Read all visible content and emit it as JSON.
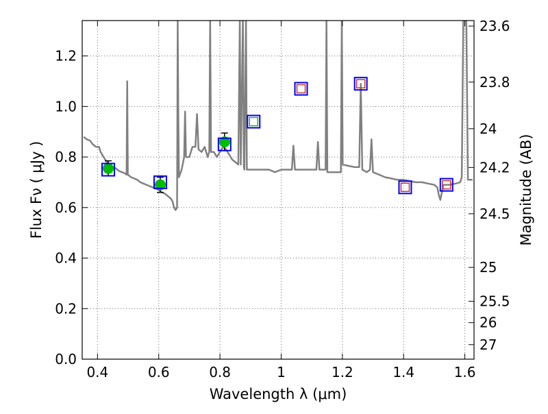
{
  "chart_data": {
    "type": "scatter",
    "xlabel": "Wavelength  λ (μm)",
    "ylabel": "Flux  Fν  ( μJy )",
    "y2label": "Magnitude (AB)",
    "xlim": [
      0.35,
      1.63
    ],
    "ylim": [
      0.0,
      1.34
    ],
    "x_ticks": [
      0.4,
      0.6,
      0.8,
      1.0,
      1.2,
      1.4,
      1.6
    ],
    "x_tick_labels": [
      "0.4",
      "0.6",
      "0.8",
      "1",
      "1.2",
      "1.4",
      "1.6"
    ],
    "y_ticks": [
      0.0,
      0.2,
      0.4,
      0.6,
      0.8,
      1.0,
      1.2
    ],
    "y_tick_labels": [
      "0.0",
      "0.2",
      "0.4",
      "0.6",
      "0.8",
      "1.0",
      "1.2"
    ],
    "mag_ticks": [
      23.6,
      23.8,
      24,
      24.2,
      24.5,
      25,
      25.5,
      26,
      27
    ],
    "mag_tick_labels": [
      "23.6",
      "23.8",
      "24",
      "24.2",
      "24.5",
      "25",
      "25.5",
      "26",
      "27"
    ],
    "grid": true,
    "series": [
      {
        "kind": "spectrum",
        "color": "#808080",
        "points": [
          [
            0.355,
            0.88
          ],
          [
            0.365,
            0.87
          ],
          [
            0.375,
            0.865
          ],
          [
            0.385,
            0.85
          ],
          [
            0.395,
            0.84
          ],
          [
            0.405,
            0.84
          ],
          [
            0.41,
            0.82
          ],
          [
            0.42,
            0.8
          ],
          [
            0.43,
            0.78
          ],
          [
            0.44,
            0.77
          ],
          [
            0.45,
            0.76
          ],
          [
            0.46,
            0.755
          ],
          [
            0.47,
            0.745
          ],
          [
            0.48,
            0.74
          ],
          [
            0.49,
            0.735
          ],
          [
            0.495,
            0.73
          ],
          [
            0.497,
            1.1
          ],
          [
            0.499,
            0.73
          ],
          [
            0.51,
            0.72
          ],
          [
            0.52,
            0.715
          ],
          [
            0.53,
            0.71
          ],
          [
            0.54,
            0.7
          ],
          [
            0.55,
            0.695
          ],
          [
            0.56,
            0.69
          ],
          [
            0.57,
            0.685
          ],
          [
            0.58,
            0.68
          ],
          [
            0.59,
            0.675
          ],
          [
            0.6,
            0.67
          ],
          [
            0.61,
            0.66
          ],
          [
            0.62,
            0.655
          ],
          [
            0.63,
            0.645
          ],
          [
            0.64,
            0.635
          ],
          [
            0.645,
            0.625
          ],
          [
            0.65,
            0.6
          ],
          [
            0.655,
            0.59
          ],
          [
            0.66,
            0.6
          ],
          [
            0.662,
            1.34
          ],
          [
            0.664,
            0.98
          ],
          [
            0.666,
            0.72
          ],
          [
            0.675,
            0.75
          ],
          [
            0.683,
            0.8
          ],
          [
            0.686,
            0.98
          ],
          [
            0.689,
            0.8
          ],
          [
            0.7,
            0.8
          ],
          [
            0.71,
            0.84
          ],
          [
            0.72,
            0.84
          ],
          [
            0.725,
            0.97
          ],
          [
            0.73,
            0.83
          ],
          [
            0.74,
            0.82
          ],
          [
            0.75,
            0.84
          ],
          [
            0.76,
            0.8
          ],
          [
            0.765,
            0.82
          ],
          [
            0.768,
            1.34
          ],
          [
            0.771,
            0.82
          ],
          [
            0.78,
            0.82
          ],
          [
            0.79,
            0.8
          ],
          [
            0.8,
            0.82
          ],
          [
            0.81,
            0.84
          ],
          [
            0.82,
            0.83
          ],
          [
            0.83,
            0.81
          ],
          [
            0.84,
            0.79
          ],
          [
            0.85,
            0.78
          ],
          [
            0.86,
            0.77
          ],
          [
            0.865,
            1.34
          ],
          [
            0.868,
            0.77
          ],
          [
            0.875,
            1.34
          ],
          [
            0.878,
            0.76
          ],
          [
            0.88,
            0.75
          ],
          [
            0.885,
            1.34
          ],
          [
            0.888,
            0.75
          ],
          [
            0.9,
            0.75
          ],
          [
            0.92,
            0.75
          ],
          [
            0.94,
            0.75
          ],
          [
            0.96,
            0.75
          ],
          [
            0.98,
            0.74
          ],
          [
            1.0,
            0.75
          ],
          [
            1.02,
            0.75
          ],
          [
            1.035,
            0.75
          ],
          [
            1.04,
            0.845
          ],
          [
            1.045,
            0.75
          ],
          [
            1.06,
            0.75
          ],
          [
            1.08,
            0.75
          ],
          [
            1.1,
            0.75
          ],
          [
            1.115,
            0.75
          ],
          [
            1.12,
            0.86
          ],
          [
            1.125,
            0.75
          ],
          [
            1.14,
            0.75
          ],
          [
            1.145,
            0.75
          ],
          [
            1.148,
            1.34
          ],
          [
            1.151,
            0.74
          ],
          [
            1.16,
            0.74
          ],
          [
            1.18,
            0.74
          ],
          [
            1.195,
            0.74
          ],
          [
            1.198,
            1.34
          ],
          [
            1.201,
            0.77
          ],
          [
            1.22,
            0.765
          ],
          [
            1.24,
            0.76
          ],
          [
            1.255,
            0.76
          ],
          [
            1.26,
            1.09
          ],
          [
            1.265,
            0.75
          ],
          [
            1.28,
            0.74
          ],
          [
            1.29,
            0.75
          ],
          [
            1.295,
            0.87
          ],
          [
            1.3,
            0.74
          ],
          [
            1.32,
            0.73
          ],
          [
            1.34,
            0.72
          ],
          [
            1.36,
            0.715
          ],
          [
            1.38,
            0.71
          ],
          [
            1.4,
            0.71
          ],
          [
            1.42,
            0.705
          ],
          [
            1.44,
            0.7
          ],
          [
            1.46,
            0.7
          ],
          [
            1.48,
            0.695
          ],
          [
            1.5,
            0.69
          ],
          [
            1.51,
            0.68
          ],
          [
            1.515,
            0.65
          ],
          [
            1.52,
            0.63
          ],
          [
            1.525,
            0.66
          ],
          [
            1.53,
            0.69
          ],
          [
            1.55,
            0.69
          ],
          [
            1.57,
            0.695
          ],
          [
            1.585,
            0.7
          ],
          [
            1.59,
            0.72
          ],
          [
            1.595,
            1.34
          ],
          [
            1.605,
            1.34
          ],
          [
            1.61,
            0.71
          ],
          [
            1.625,
            0.71
          ]
        ]
      },
      {
        "kind": "measured",
        "color": "#00bb00",
        "points": [
          [
            0.435,
            0.755,
            0.03
          ],
          [
            0.605,
            0.69,
            0.03
          ],
          [
            0.815,
            0.86,
            0.035
          ]
        ]
      },
      {
        "kind": "model-squares",
        "color": "#0000ee",
        "points": [
          [
            0.435,
            0.75
          ],
          [
            0.605,
            0.7
          ],
          [
            0.815,
            0.85
          ],
          [
            0.91,
            0.94
          ],
          [
            1.065,
            1.07
          ],
          [
            1.26,
            1.09
          ],
          [
            1.405,
            0.68
          ],
          [
            1.54,
            0.69
          ]
        ]
      },
      {
        "kind": "inner-squares-green",
        "color": "#33aa33",
        "points": [
          [
            0.91,
            0.94
          ]
        ]
      },
      {
        "kind": "inner-squares-red",
        "color": "#cc3333",
        "points": [
          [
            1.065,
            1.07
          ],
          [
            1.26,
            1.09
          ],
          [
            1.405,
            0.68
          ],
          [
            1.54,
            0.69
          ]
        ]
      }
    ]
  }
}
